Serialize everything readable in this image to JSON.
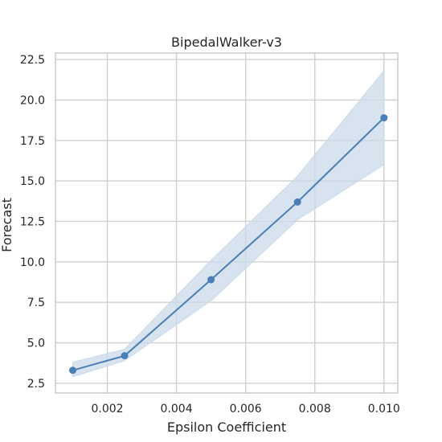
{
  "chart_data": {
    "type": "line",
    "title": "BipedalWalker-v3",
    "xlabel": "Epsilon Coefficient",
    "ylabel": "Forecast",
    "xlim": [
      0.0005,
      0.0104
    ],
    "ylim": [
      1.9,
      22.9
    ],
    "xticks": [
      0.002,
      0.004,
      0.006,
      0.008,
      0.01
    ],
    "xtick_labels": [
      "0.002",
      "0.004",
      "0.006",
      "0.008",
      "0.010"
    ],
    "yticks": [
      2.5,
      5.0,
      7.5,
      10.0,
      12.5,
      15.0,
      17.5,
      20.0,
      22.5
    ],
    "ytick_labels": [
      "2.5",
      "5.0",
      "7.5",
      "10.0",
      "12.5",
      "15.0",
      "17.5",
      "20.0",
      "22.5"
    ],
    "grid": true,
    "series": [
      {
        "x": [
          0.001,
          0.0025,
          0.005,
          0.0075,
          0.01
        ],
        "y": [
          3.3,
          4.2,
          8.9,
          13.7,
          18.9
        ],
        "lower": [
          2.9,
          3.9,
          7.6,
          12.6,
          16.0
        ],
        "upper": [
          3.8,
          4.6,
          10.1,
          15.3,
          21.8
        ],
        "color": "#4a7fb5",
        "band_color": "#c9d9ea"
      }
    ]
  }
}
